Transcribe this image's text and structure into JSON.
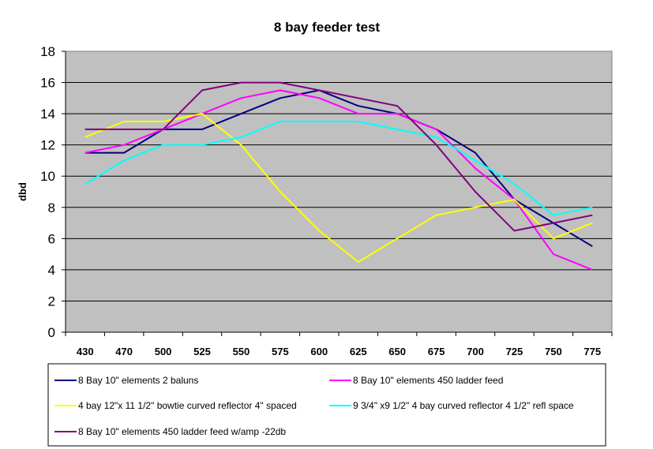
{
  "chart_data": {
    "type": "line",
    "title": "8 bay feeder test",
    "xlabel": "",
    "ylabel": "dbd",
    "ylim": [
      0,
      18
    ],
    "ytick_step": 2,
    "grid": true,
    "legend_position": "bottom",
    "plot_background": "#c0c0c0",
    "categories": [
      "430",
      "470",
      "500",
      "525",
      "550",
      "575",
      "600",
      "625",
      "650",
      "675",
      "700",
      "725",
      "750",
      "775"
    ],
    "series": [
      {
        "name": "8 Bay 10\" elements 2 baluns",
        "color": "#000080",
        "values": [
          11.5,
          11.5,
          13,
          13,
          14,
          15,
          15.5,
          14.5,
          14,
          13,
          11.5,
          8.5,
          7,
          5.5
        ]
      },
      {
        "name": "8 Bay 10\" elements 450 ladder feed",
        "color": "#ff00ff",
        "values": [
          11.5,
          12,
          13,
          14,
          15,
          15.5,
          15,
          14,
          14,
          13,
          10.5,
          8.5,
          5,
          4
        ]
      },
      {
        "name": "4 bay 12\"x 11 1/2\" bowtie curved reflector 4\" spaced",
        "color": "#ffff00",
        "values": [
          12.5,
          13.5,
          13.5,
          14,
          12,
          9,
          6.5,
          4.5,
          6,
          7.5,
          8,
          8.5,
          6,
          7
        ]
      },
      {
        "name": "9 3/4\" x9 1/2\" 4 bay curved reflector 4 1/2\" refl space",
        "color": "#00ffff",
        "values": [
          9.5,
          11,
          12,
          12,
          12.5,
          13.5,
          13.5,
          13.5,
          13,
          12.5,
          11,
          9.5,
          7.5,
          8
        ]
      },
      {
        "name": "8 Bay 10\" elements 450 ladder feed w/amp -22db",
        "color": "#800080",
        "values": [
          13,
          13,
          13,
          15.5,
          16,
          16,
          15.5,
          15,
          14.5,
          12,
          9,
          6.5,
          7,
          7.5
        ]
      }
    ]
  }
}
